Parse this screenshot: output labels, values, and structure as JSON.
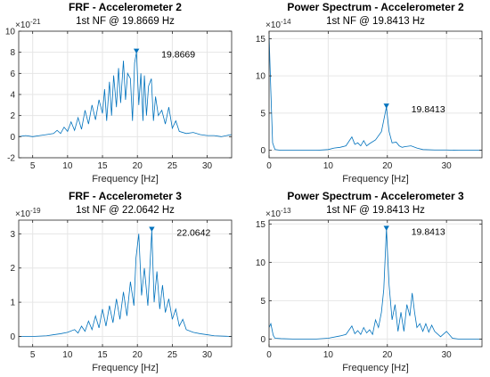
{
  "colors": {
    "line": "#0072bd",
    "grid": "#e6e6e6",
    "axis": "#262626"
  },
  "chart_data": [
    {
      "type": "line",
      "title": "FRF - Accelerometer 2",
      "subtitle": "1st NF @ 19.8669 Hz",
      "xlabel": "Frequency [Hz]",
      "ylabel": "",
      "exponent": "10",
      "exponent_power": "-21",
      "xlim": [
        3,
        33.5
      ],
      "ylim": [
        -2,
        10
      ],
      "xticks": [
        5,
        10,
        15,
        20,
        25,
        30
      ],
      "xtick_labels": [
        "5",
        "10",
        "15",
        "20",
        "25",
        "30"
      ],
      "yticks": [
        -2,
        0,
        2,
        4,
        6,
        8,
        10
      ],
      "ytick_labels": [
        "-2",
        "0",
        "2",
        "4",
        "6",
        "8",
        "10"
      ],
      "grid": true,
      "peak": {
        "x": 19.8669,
        "y": 8.0,
        "label": "19.8669"
      },
      "x": [
        3,
        4,
        5,
        6,
        7,
        8,
        8.5,
        9,
        9.5,
        10,
        10.5,
        11,
        11.5,
        12,
        12.5,
        13,
        13.5,
        14,
        14.5,
        15,
        15.3,
        15.6,
        16,
        16.3,
        16.6,
        17,
        17.3,
        17.6,
        18,
        18.3,
        18.6,
        19,
        19.3,
        19.6,
        19.8669,
        20.2,
        20.5,
        20.8,
        21,
        21.3,
        21.6,
        22,
        22.3,
        22.6,
        23,
        23.5,
        24,
        24.5,
        25,
        25.5,
        26,
        27,
        28,
        29,
        30,
        31,
        32,
        33.5
      ],
      "y": [
        0,
        0.1,
        0,
        0.1,
        0.2,
        0.3,
        0.6,
        0.3,
        0.9,
        0.5,
        1.4,
        0.6,
        1.8,
        0.7,
        2.5,
        1.2,
        3.0,
        1.6,
        3.5,
        2.2,
        4.5,
        1.5,
        5.2,
        2.0,
        5.8,
        2.8,
        6.5,
        3.2,
        7.2,
        3.5,
        6.0,
        5.5,
        1.5,
        7.0,
        8.0,
        3.0,
        6.0,
        1.5,
        5.8,
        2.0,
        4.8,
        5.5,
        1.5,
        3.8,
        2.0,
        2.5,
        1.2,
        2.8,
        0.8,
        1.5,
        0.5,
        0.3,
        0.4,
        0.2,
        0.1,
        0.1,
        0,
        0.2
      ]
    },
    {
      "type": "line",
      "title": "Power Spectrum - Accelerometer 2",
      "subtitle": "1st NF @ 19.8413 Hz",
      "xlabel": "Frequency [Hz]",
      "ylabel": "",
      "exponent": "10",
      "exponent_power": "-14",
      "xlim": [
        0,
        36
      ],
      "ylim": [
        -1,
        16
      ],
      "xticks": [
        0,
        10,
        20,
        30
      ],
      "xtick_labels": [
        "0",
        "10",
        "20",
        "30"
      ],
      "yticks": [
        0,
        5,
        10,
        15
      ],
      "ytick_labels": [
        "0",
        "5",
        "10",
        "15"
      ],
      "grid": true,
      "peak": {
        "x": 19.8413,
        "y": 5.8,
        "label": "19.8413"
      },
      "x": [
        0,
        0.3,
        0.6,
        1,
        2,
        4,
        6,
        8,
        10,
        11,
        12,
        13,
        14,
        14.5,
        15,
        15.5,
        16,
        16.5,
        17,
        18,
        19,
        19.8413,
        20.3,
        20.8,
        21.5,
        22,
        22.5,
        23,
        24,
        25,
        26,
        28,
        30,
        32,
        34,
        36
      ],
      "y": [
        15.5,
        8,
        1,
        0.1,
        0,
        0,
        0,
        0,
        0.1,
        0.3,
        0.4,
        0.6,
        1.8,
        0.8,
        1.0,
        0.6,
        1.3,
        0.6,
        0.9,
        1.4,
        2.5,
        5.8,
        2.5,
        1.0,
        1.1,
        0.6,
        0.4,
        0.5,
        0.6,
        0.3,
        0.1,
        0.05,
        0.05,
        0,
        0,
        0
      ]
    },
    {
      "type": "line",
      "title": "FRF - Accelerometer 3",
      "subtitle": "1st NF @ 22.0642 Hz",
      "xlabel": "Frequency [Hz]",
      "ylabel": "",
      "exponent": "10",
      "exponent_power": "-19",
      "xlim": [
        3,
        33.5
      ],
      "ylim": [
        -0.3,
        3.4
      ],
      "xticks": [
        5,
        10,
        15,
        20,
        25,
        30
      ],
      "xtick_labels": [
        "5",
        "10",
        "15",
        "20",
        "25",
        "30"
      ],
      "yticks": [
        0,
        1,
        2,
        3
      ],
      "ytick_labels": [
        "0",
        "1",
        "2",
        "3"
      ],
      "grid": true,
      "peak": {
        "x": 22.0642,
        "y": 3.1,
        "label": "22.0642"
      },
      "x": [
        3,
        5,
        7,
        8,
        9,
        10,
        11,
        11.5,
        12,
        12.5,
        13,
        13.5,
        14,
        14.5,
        15,
        15.5,
        16,
        16.5,
        17,
        17.5,
        18,
        18.5,
        19,
        19.5,
        19.8,
        20.2,
        20.6,
        21,
        21.5,
        22.0642,
        22.4,
        22.8,
        23.2,
        23.6,
        24,
        24.5,
        25,
        25.5,
        26,
        26.5,
        27,
        28,
        29,
        30,
        31,
        33.5
      ],
      "y": [
        0,
        0,
        0.02,
        0.05,
        0.08,
        0.12,
        0.2,
        0.1,
        0.3,
        0.15,
        0.45,
        0.2,
        0.6,
        0.25,
        0.8,
        0.3,
        0.9,
        0.4,
        1.1,
        0.5,
        1.3,
        0.6,
        1.6,
        0.9,
        2.3,
        3.0,
        1.2,
        2.0,
        0.9,
        3.1,
        1.0,
        1.9,
        0.8,
        1.5,
        0.7,
        1.1,
        0.5,
        0.8,
        0.3,
        0.5,
        0.2,
        0.12,
        0.08,
        0.05,
        0.02,
        0
      ]
    },
    {
      "type": "line",
      "title": "Power Spectrum - Accelerometer 3",
      "subtitle": "1st NF @ 19.8413 Hz",
      "xlabel": "Frequency [Hz]",
      "ylabel": "",
      "exponent": "10",
      "exponent_power": "-13",
      "xlim": [
        0,
        36
      ],
      "ylim": [
        -1,
        15.5
      ],
      "xticks": [
        0,
        10,
        20,
        30
      ],
      "xtick_labels": [
        "0",
        "10",
        "20",
        "30"
      ],
      "yticks": [
        0,
        5,
        10,
        15
      ],
      "ytick_labels": [
        "0",
        "5",
        "10",
        "15"
      ],
      "grid": true,
      "peak": {
        "x": 19.8413,
        "y": 14.3,
        "label": "19.8413"
      },
      "x": [
        0,
        0.3,
        0.7,
        1,
        2,
        4,
        6,
        8,
        10,
        12,
        13,
        14,
        14.5,
        15,
        15.5,
        16,
        16.5,
        17,
        17.5,
        18,
        18.5,
        19,
        19.4,
        19.8413,
        20.3,
        20.8,
        21.3,
        21.8,
        22.3,
        22.8,
        23.3,
        23.8,
        24.2,
        24.6,
        25,
        25.5,
        26,
        26.5,
        27,
        27.5,
        28,
        29,
        30,
        31,
        32,
        34,
        36
      ],
      "y": [
        1.5,
        2.0,
        0.5,
        0.1,
        0.05,
        0,
        0,
        0,
        0.1,
        0.4,
        0.6,
        1.7,
        0.7,
        1.1,
        0.6,
        1.5,
        0.8,
        1.2,
        0.6,
        2.5,
        1.5,
        3.5,
        6.5,
        14.3,
        7.0,
        2.5,
        4.5,
        1.0,
        3.5,
        1.0,
        4.5,
        3.0,
        6.0,
        3.5,
        1.5,
        2.0,
        1.0,
        2.0,
        0.9,
        1.8,
        1.0,
        0.3,
        1.0,
        0.1,
        0,
        0,
        0
      ]
    }
  ]
}
